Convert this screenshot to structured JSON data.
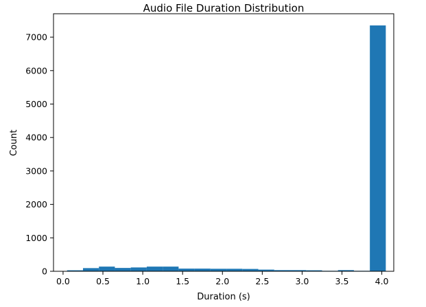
{
  "chart_data": {
    "type": "bar",
    "title": "Audio File Duration Distribution",
    "xlabel": "Duration (s)",
    "ylabel": "Count",
    "xlim": [
      -0.12,
      4.15
    ],
    "ylim": [
      0,
      7700
    ],
    "xticks": [
      0.0,
      0.5,
      1.0,
      1.5,
      2.0,
      2.5,
      3.0,
      3.5,
      4.0
    ],
    "xtick_labels": [
      "0.0",
      "0.5",
      "1.0",
      "1.5",
      "2.0",
      "2.5",
      "3.0",
      "3.5",
      "4.0"
    ],
    "yticks": [
      0,
      1000,
      2000,
      3000,
      4000,
      5000,
      6000,
      7000
    ],
    "ytick_labels": [
      "0",
      "1000",
      "2000",
      "3000",
      "4000",
      "5000",
      "6000",
      "7000"
    ],
    "grid": false,
    "bar_color": "#1f77b4",
    "bins": [
      {
        "start": 0.05,
        "end": 0.25,
        "count": 30
      },
      {
        "start": 0.25,
        "end": 0.45,
        "count": 95
      },
      {
        "start": 0.45,
        "end": 0.65,
        "count": 140
      },
      {
        "start": 0.65,
        "end": 0.85,
        "count": 100
      },
      {
        "start": 0.85,
        "end": 1.05,
        "count": 115
      },
      {
        "start": 1.05,
        "end": 1.25,
        "count": 140
      },
      {
        "start": 1.25,
        "end": 1.45,
        "count": 140
      },
      {
        "start": 1.45,
        "end": 1.65,
        "count": 80
      },
      {
        "start": 1.65,
        "end": 1.85,
        "count": 80
      },
      {
        "start": 1.85,
        "end": 2.05,
        "count": 75
      },
      {
        "start": 2.05,
        "end": 2.25,
        "count": 75
      },
      {
        "start": 2.25,
        "end": 2.45,
        "count": 70
      },
      {
        "start": 2.45,
        "end": 2.65,
        "count": 50
      },
      {
        "start": 2.65,
        "end": 2.85,
        "count": 35
      },
      {
        "start": 2.85,
        "end": 3.05,
        "count": 35
      },
      {
        "start": 3.05,
        "end": 3.25,
        "count": 30
      },
      {
        "start": 3.25,
        "end": 3.45,
        "count": 15
      },
      {
        "start": 3.45,
        "end": 3.65,
        "count": 35
      },
      {
        "start": 3.65,
        "end": 3.85,
        "count": 15
      },
      {
        "start": 3.85,
        "end": 4.05,
        "count": 7350
      }
    ]
  }
}
